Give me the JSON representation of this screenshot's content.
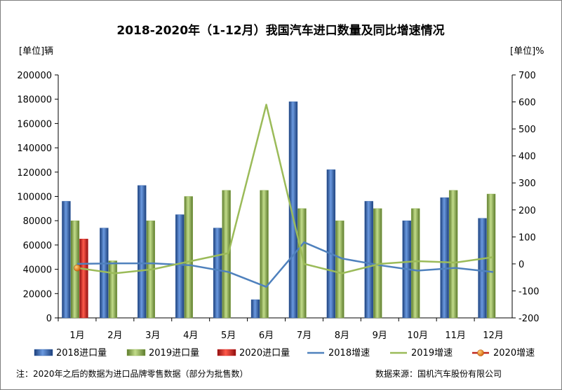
{
  "chart_data": {
    "type": "bar",
    "title": "2018-2020年（1-12月）我国汽车进口数量及同比增速情况",
    "left_axis_unit": "[单位]辆",
    "right_axis_unit": "[单位]%",
    "categories": [
      "1月",
      "2月",
      "3月",
      "4月",
      "5月",
      "6月",
      "7月",
      "8月",
      "9月",
      "10月",
      "11月",
      "12月"
    ],
    "left_ylim": [
      0,
      200000
    ],
    "left_ticks": [
      0,
      20000,
      40000,
      60000,
      80000,
      100000,
      120000,
      140000,
      160000,
      180000,
      200000
    ],
    "right_ylim": [
      -200,
      700
    ],
    "right_ticks": [
      -200,
      -100,
      0,
      100,
      200,
      300,
      400,
      500,
      600,
      700
    ],
    "bar_series": [
      {
        "name": "2018进口量",
        "color": "#2f5fa8",
        "values": [
          96000,
          74000,
          109000,
          85000,
          74000,
          15000,
          178000,
          122000,
          96000,
          80000,
          99000,
          82000
        ]
      },
      {
        "name": "2019进口量",
        "color": "#8db04f",
        "values": [
          80000,
          47000,
          80000,
          100000,
          105000,
          105000,
          90000,
          80000,
          90000,
          90000,
          105000,
          102000
        ]
      },
      {
        "name": "2020进口量",
        "color": "#d01f1f",
        "values": [
          65000,
          null,
          null,
          null,
          null,
          null,
          null,
          null,
          null,
          null,
          null,
          null
        ]
      }
    ],
    "line_series": [
      {
        "name": "2018增速",
        "color": "#4f81bd",
        "values": [
          0,
          2,
          2,
          -5,
          -30,
          -85,
          80,
          20,
          -5,
          -25,
          -15,
          -30
        ]
      },
      {
        "name": "2019增速",
        "color": "#9bbb59",
        "values": [
          -15,
          -35,
          -20,
          10,
          40,
          590,
          0,
          -35,
          0,
          10,
          5,
          25
        ]
      },
      {
        "name": "2020增速",
        "color": "#e46c0a",
        "values": [
          -15,
          null,
          null,
          null,
          null,
          null,
          null,
          null,
          null,
          null,
          null,
          null
        ]
      }
    ],
    "legend_position": "bottom",
    "grid": false,
    "footnote": "注：2020年之后的数据为进口品牌零售数据（部分为批售数）",
    "source": "数据来源：国机汽车股份有限公司"
  }
}
